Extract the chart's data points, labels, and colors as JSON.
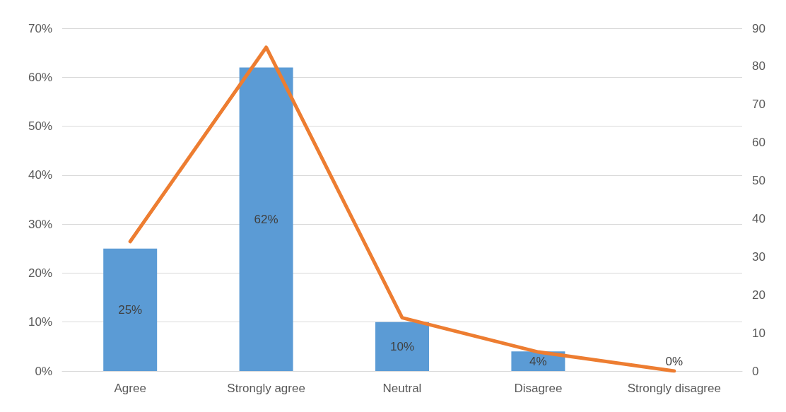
{
  "chart_data": {
    "type": "bar",
    "categories": [
      "Agree",
      "Strongly agree",
      "Neutral",
      "Disagree",
      "Strongly disagree"
    ],
    "series": [
      {
        "color": "#5b9bd5",
        "values": [
          25,
          62,
          10,
          4,
          0
        ],
        "value_labels": [
          "25%",
          "62%",
          "10%",
          "4%",
          "0%"
        ]
      },
      {
        "type": "line",
        "axis": "y2",
        "color": "#ed7d31",
        "values": [
          34,
          85,
          14,
          5,
          0
        ],
        "marker": "none",
        "line_style": "solid"
      }
    ],
    "ylim": [
      0,
      70
    ],
    "yticks": [
      {
        "value": 0,
        "label": "0%"
      },
      {
        "value": 10,
        "label": "10%"
      },
      {
        "value": 20,
        "label": "20%"
      },
      {
        "value": 30,
        "label": "30%"
      },
      {
        "value": 40,
        "label": "40%"
      },
      {
        "value": 50,
        "label": "50%"
      },
      {
        "value": 60,
        "label": "60%"
      },
      {
        "value": 70,
        "label": "70%"
      }
    ],
    "y2lim": [
      0,
      90
    ],
    "y2ticks": [
      0,
      10,
      20,
      30,
      40,
      50,
      60,
      70,
      80,
      90
    ],
    "grid": "y"
  }
}
